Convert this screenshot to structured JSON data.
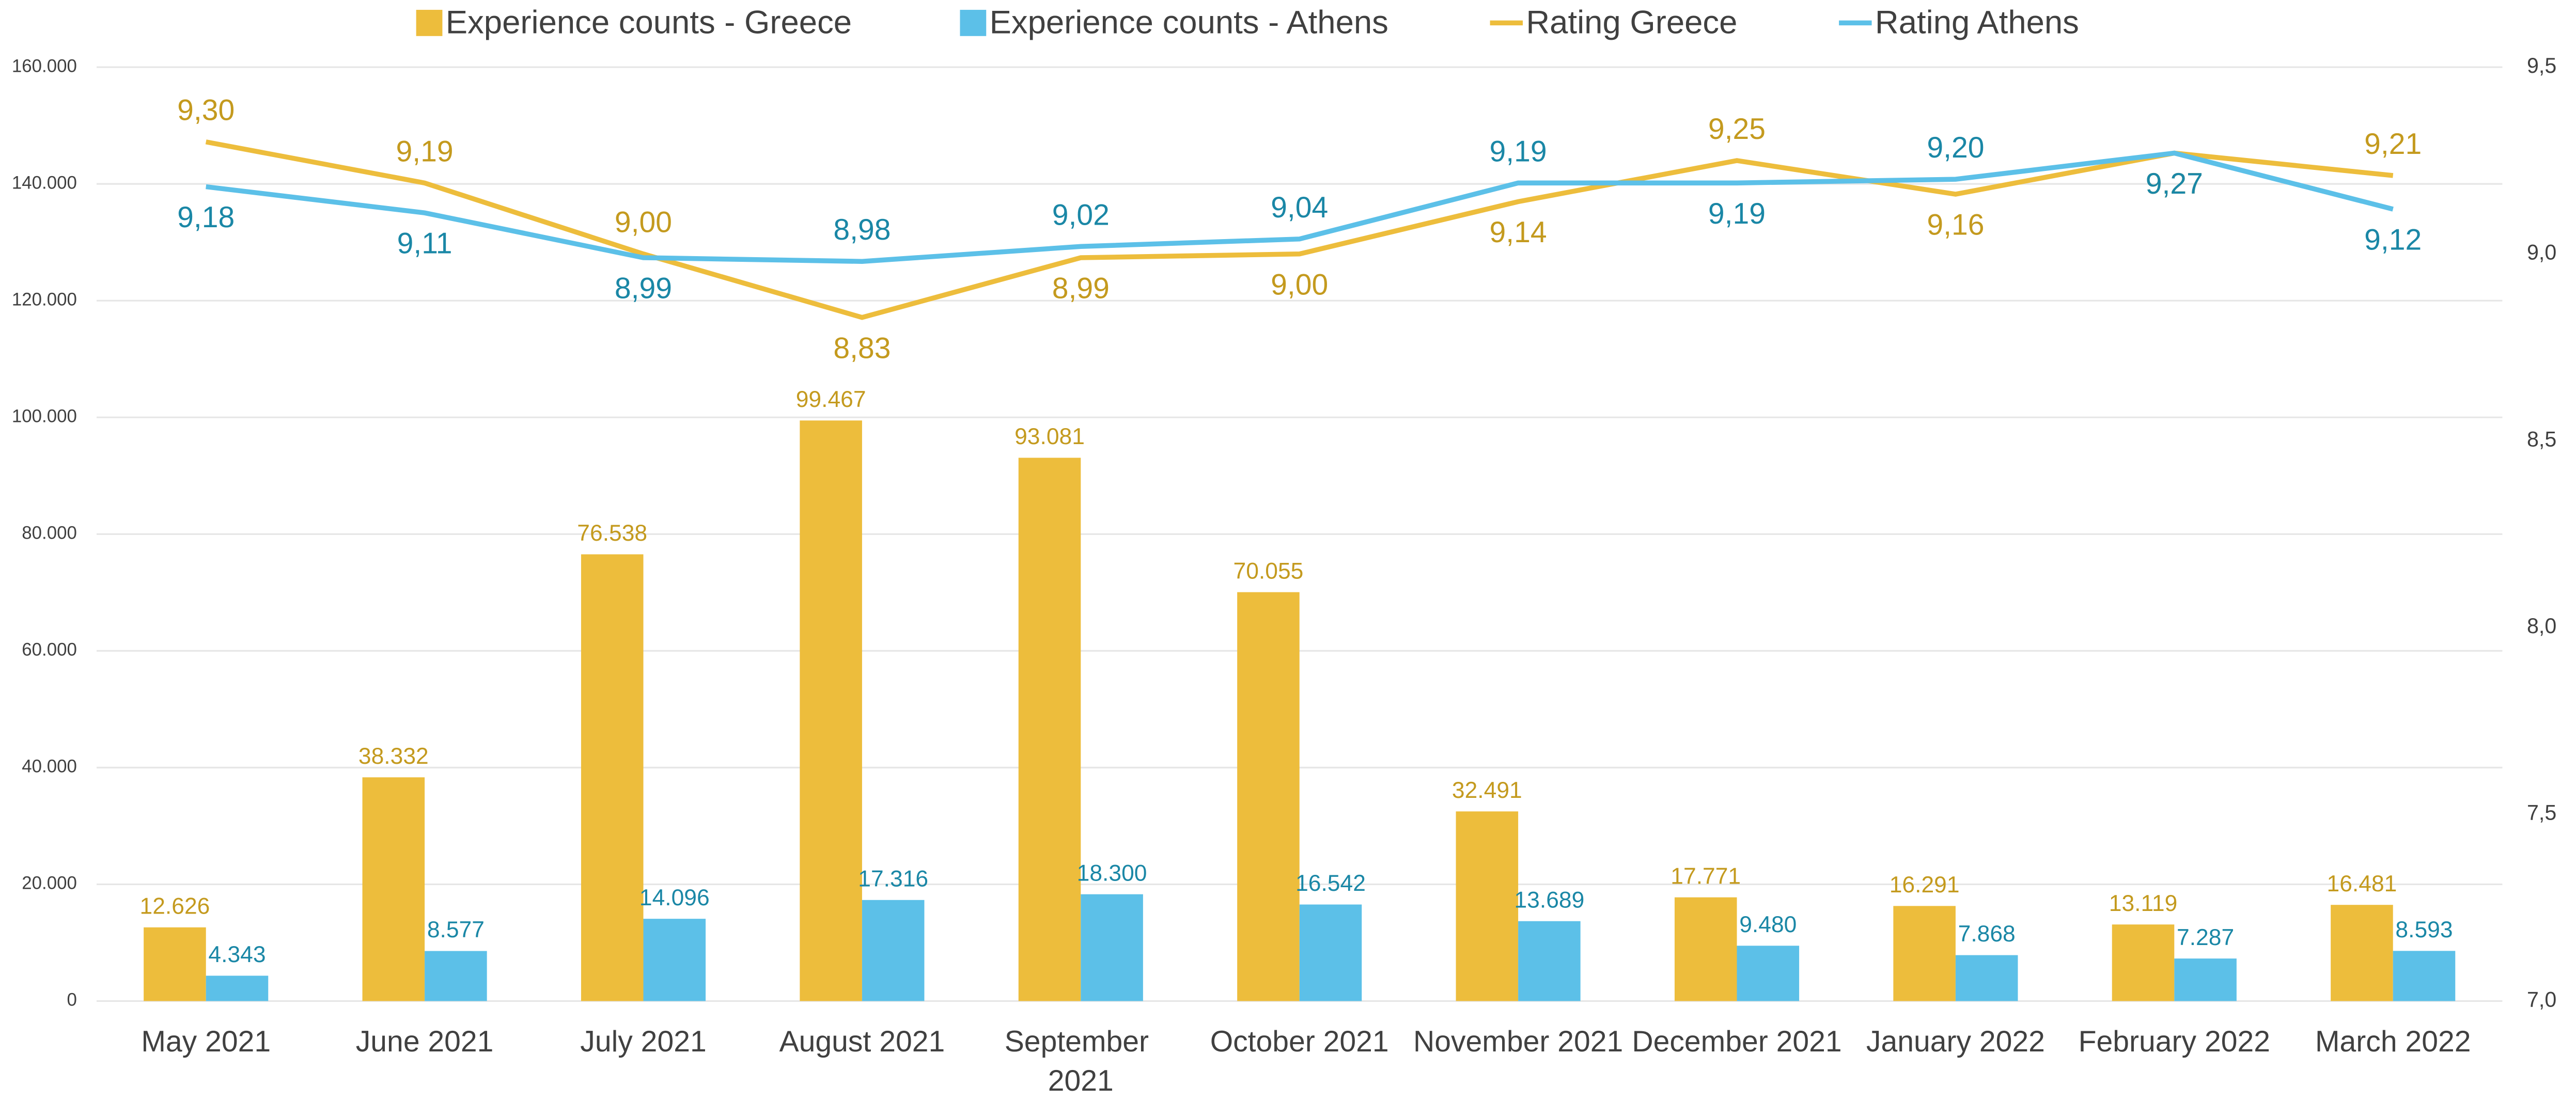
{
  "chart_data": {
    "type": "bar_line",
    "categories": [
      "May 2021",
      "June 2021",
      "July 2021",
      "August 2021",
      "September 2021",
      "October 2021",
      "November 2021",
      "December 2021",
      "January 2022",
      "February 2022",
      "March 2022"
    ],
    "series": [
      {
        "name": "Experience counts - Greece",
        "type": "bar",
        "color": "#EDBD3C",
        "label_color": "#C49A1E",
        "values": [
          12626,
          38332,
          76538,
          99467,
          93081,
          70055,
          32491,
          17771,
          16291,
          13119,
          16481
        ],
        "value_labels": [
          "12.626",
          "38.332",
          "76.538",
          "99.467",
          "93.081",
          "70.055",
          "32.491",
          "17.771",
          "16.291",
          "13.119",
          "16.481"
        ]
      },
      {
        "name": "Experience counts - Athens",
        "type": "bar",
        "color": "#5CC0E8",
        "label_color": "#1A87A6",
        "values": [
          4343,
          8577,
          14096,
          17316,
          18300,
          16542,
          13689,
          9480,
          7868,
          7287,
          8593
        ],
        "value_labels": [
          "4.343",
          "8.577",
          "14.096",
          "17.316",
          "18.300",
          "16.542",
          "13.689",
          "9.480",
          "7.868",
          "7.287",
          "8.593"
        ]
      },
      {
        "name": "Rating Greece",
        "type": "line",
        "axis": "y2",
        "color": "#EDBD3C",
        "label_color": "#C49A1E",
        "values": [
          9.3,
          9.19,
          9.0,
          8.83,
          8.99,
          9.0,
          9.14,
          9.25,
          9.16,
          9.27,
          9.21
        ],
        "value_labels": [
          "9,30",
          "9,19",
          "9,00",
          "8,83",
          "8,99",
          "9,00",
          "9,14",
          "9,25",
          "9,16",
          "9,27",
          "9,21"
        ]
      },
      {
        "name": "Rating Athens",
        "type": "line",
        "axis": "y2",
        "color": "#5CC0E8",
        "label_color": "#1A87A6",
        "values": [
          9.18,
          9.11,
          8.99,
          8.98,
          9.02,
          9.04,
          9.19,
          9.19,
          9.2,
          9.27,
          9.12
        ],
        "value_labels": [
          "9,18",
          "9,11",
          "8,99",
          "8,98",
          "9,02",
          "9,04",
          "9,19",
          "9,19",
          "9,20",
          "9,27",
          "9,12"
        ]
      }
    ],
    "ylim": [
      0,
      160000
    ],
    "yticks": [
      {
        "value": 0,
        "label": "0"
      },
      {
        "value": 20000,
        "label": "20.000"
      },
      {
        "value": 40000,
        "label": "40.000"
      },
      {
        "value": 60000,
        "label": "60.000"
      },
      {
        "value": 80000,
        "label": "80.000"
      },
      {
        "value": 100000,
        "label": "100.000"
      },
      {
        "value": 120000,
        "label": "120.000"
      },
      {
        "value": 140000,
        "label": "140.000"
      },
      {
        "value": 160000,
        "label": "160.000"
      }
    ],
    "y2lim": [
      7.0,
      9.5
    ],
    "y2ticks": [
      {
        "value": 7.0,
        "label": "7,0"
      },
      {
        "value": 7.5,
        "label": "7,5"
      },
      {
        "value": 8.0,
        "label": "8,0"
      },
      {
        "value": 8.5,
        "label": "8,5"
      },
      {
        "value": 9.0,
        "label": "9,0"
      },
      {
        "value": 9.5,
        "label": "9,5"
      }
    ],
    "grid": true,
    "legend": "top"
  }
}
